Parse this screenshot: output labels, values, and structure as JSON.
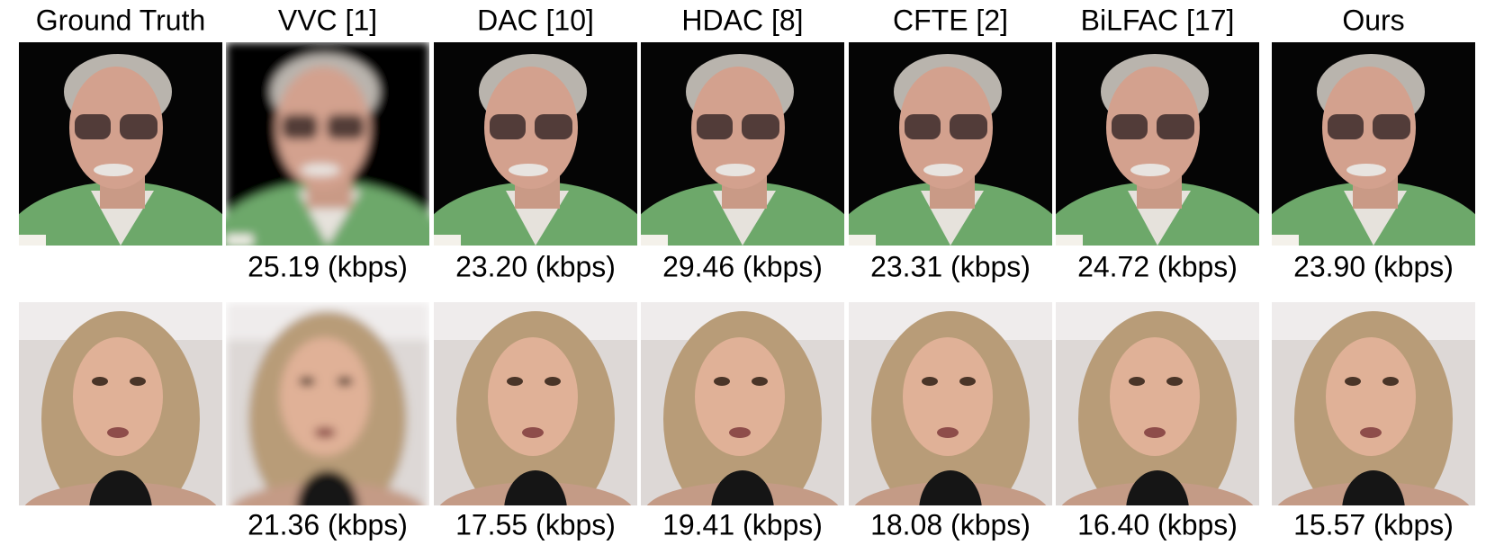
{
  "columns": [
    "Ground Truth",
    "VVC [1]",
    "DAC [10]",
    "HDAC [8]",
    "CFTE [2]",
    "BiLFAC [17]",
    "Ours"
  ],
  "rows": [
    {
      "bitrates": [
        "25.19 (kbps)",
        "23.20 (kbps)",
        "29.46 (kbps)",
        "23.31 (kbps)",
        "24.72 (kbps)",
        "23.90 (kbps)"
      ]
    },
    {
      "bitrates": [
        "21.36 (kbps)",
        "17.55 (kbps)",
        "19.41 (kbps)",
        "18.08 (kbps)",
        "16.40 (kbps)",
        "15.57 (kbps)"
      ]
    }
  ]
}
